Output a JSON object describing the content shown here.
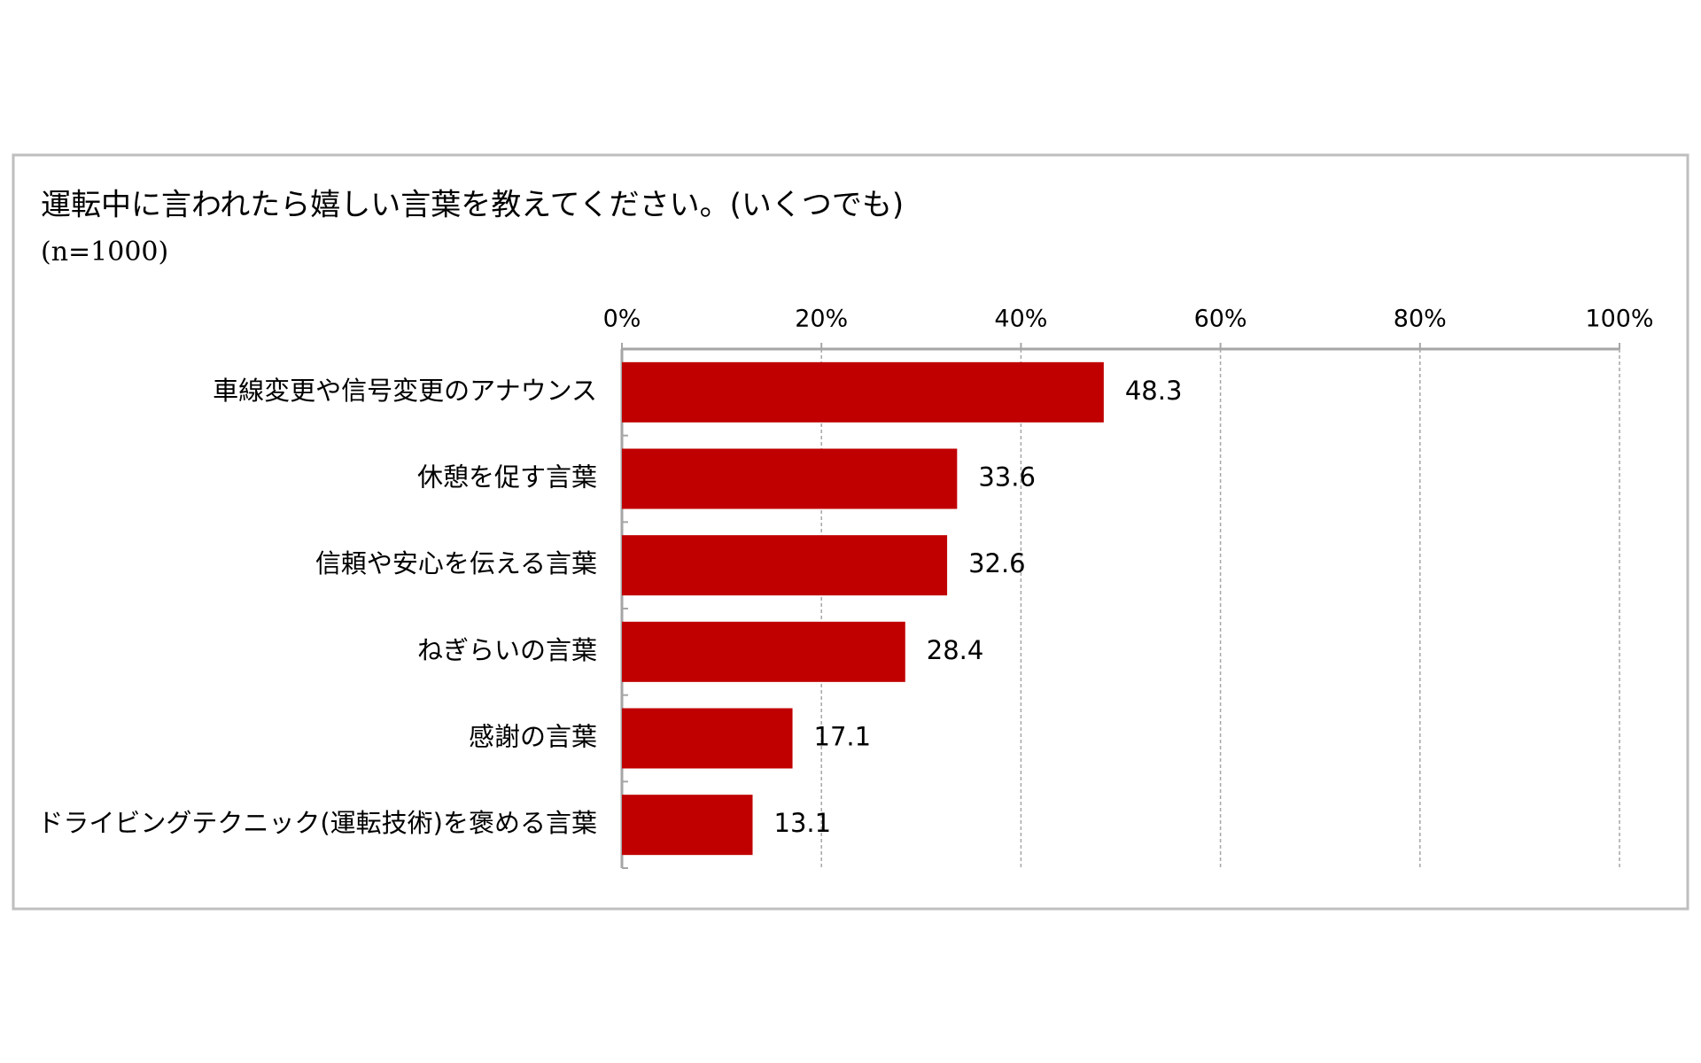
{
  "chart_data": {
    "type": "bar",
    "orientation": "horizontal",
    "title": "運転中に言われたら嬉しい言葉を教えてください。(いくつでも)",
    "subtitle": "(n=1000)",
    "categories": [
      "車線変更や信号変更のアナウンス",
      "休憩を促す言葉",
      "信頼や安心を伝える言葉",
      "ねぎらいの言葉",
      "感謝の言葉",
      "ドライビングテクニック(運転技術)を褒める言葉"
    ],
    "values": [
      48.3,
      33.6,
      32.6,
      28.4,
      17.1,
      13.1
    ],
    "color": "#c00000",
    "xlim": [
      0,
      100
    ],
    "xticks": [
      {
        "value": 0,
        "label": "0%"
      },
      {
        "value": 20,
        "label": "20%"
      },
      {
        "value": 40,
        "label": "40%"
      },
      {
        "value": 60,
        "label": "60%"
      },
      {
        "value": 80,
        "label": "80%"
      },
      {
        "value": 100,
        "label": "100%"
      }
    ],
    "grid": true
  }
}
